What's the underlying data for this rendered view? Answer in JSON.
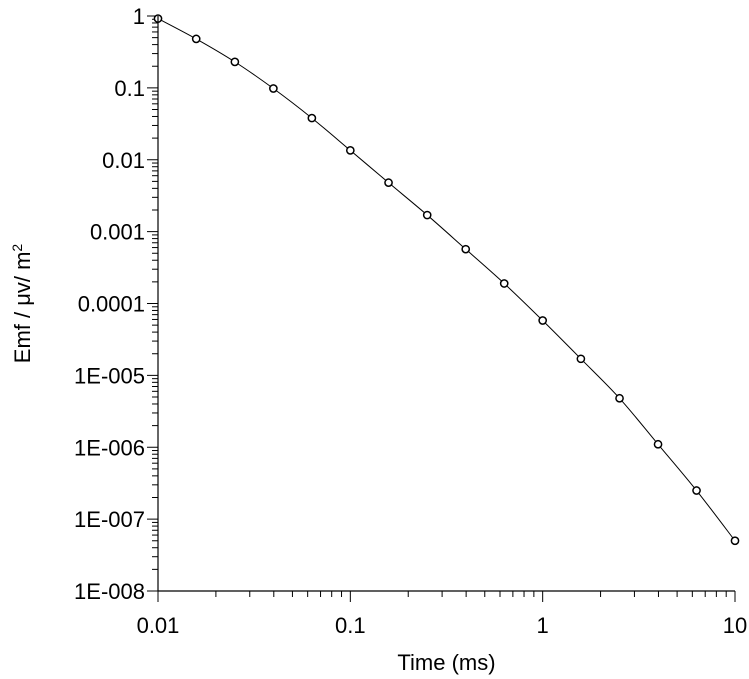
{
  "chart_data": {
    "type": "line",
    "title": "",
    "xlabel": "Time (ms)",
    "ylabel_main": "Emf /  μv/ m",
    "ylabel_sup": "2",
    "x_scale": "log",
    "y_scale": "log",
    "xlim": [
      0.01,
      10
    ],
    "ylim": [
      1e-08,
      1
    ],
    "grid": false,
    "x_tick_values": [
      0.01,
      0.1,
      1,
      10
    ],
    "x_tick_labels": [
      "0.01",
      "0.1",
      "1",
      "10"
    ],
    "y_tick_values": [
      1,
      0.1,
      0.01,
      0.001,
      0.0001,
      1e-05,
      1e-06,
      1e-07,
      1e-08
    ],
    "y_tick_labels": [
      "1",
      "0.1",
      "0.01",
      "0.001",
      "0.0001",
      "1E-005",
      "1E-006",
      "1E-007",
      "1E-008"
    ],
    "series": [
      {
        "x": [
          0.01,
          0.0158,
          0.0251,
          0.0398,
          0.0631,
          0.1,
          0.158,
          0.251,
          0.398,
          0.631,
          1,
          1.58,
          2.51,
          3.98,
          6.31,
          10
        ],
        "values": [
          0.92,
          0.48,
          0.23,
          0.098,
          0.038,
          0.0135,
          0.0048,
          0.0017,
          0.00057,
          0.00019,
          5.8e-05,
          1.7e-05,
          4.8e-06,
          1.1e-06,
          2.5e-07,
          5e-08
        ],
        "color": "#000000",
        "marker": "circle"
      }
    ]
  }
}
